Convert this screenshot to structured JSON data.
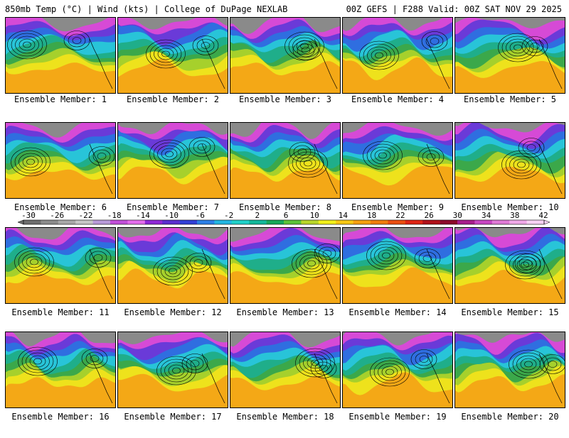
{
  "header": {
    "left": "850mb Temp (°C) | Wind (kts) | College of DuPage NEXLAB",
    "right": "00Z GEFS | F288 Valid: 00Z SAT NOV 29 2025"
  },
  "panels": [
    {
      "label": "Ensemble Member: 1"
    },
    {
      "label": "Ensemble Member: 2"
    },
    {
      "label": "Ensemble Member: 3"
    },
    {
      "label": "Ensemble Member: 4"
    },
    {
      "label": "Ensemble Member: 5"
    },
    {
      "label": "Ensemble Member: 6"
    },
    {
      "label": "Ensemble Member: 7"
    },
    {
      "label": "Ensemble Member: 8"
    },
    {
      "label": "Ensemble Member: 9"
    },
    {
      "label": "Ensemble Member: 10"
    },
    {
      "label": "Ensemble Member: 11"
    },
    {
      "label": "Ensemble Member: 12"
    },
    {
      "label": "Ensemble Member: 13"
    },
    {
      "label": "Ensemble Member: 14"
    },
    {
      "label": "Ensemble Member: 15"
    },
    {
      "label": "Ensemble Member: 16"
    },
    {
      "label": "Ensemble Member: 17"
    },
    {
      "label": "Ensemble Member: 18"
    },
    {
      "label": "Ensemble Member: 19"
    },
    {
      "label": "Ensemble Member: 20"
    }
  ],
  "colorbar": {
    "ticks": [
      "-30",
      "-26",
      "-22",
      "-18",
      "-14",
      "-10",
      "-6",
      "-2",
      "2",
      "6",
      "10",
      "14",
      "18",
      "22",
      "26",
      "30",
      "34",
      "38",
      "42"
    ],
    "colors": [
      "#6e6e6e",
      "#8c8c8c",
      "#a8a8a8",
      "#c6c6c6",
      "#b89ad8",
      "#c24fd8",
      "#e46cec",
      "#8f28d6",
      "#5b2fcf",
      "#3240d6",
      "#2c7fe6",
      "#22b6e2",
      "#1fd1c9",
      "#12b89a",
      "#17a85a",
      "#5cc23a",
      "#b9d62a",
      "#f2f01c",
      "#f7c814",
      "#f5a010",
      "#f07d0c",
      "#ea4e10",
      "#de2515",
      "#b0101a",
      "#8c0a2a",
      "#a81e8c",
      "#c847c2",
      "#e07ad6",
      "#f0a8e8",
      "#f8d2f4"
    ]
  },
  "palette": {
    "cold_grey": "#8a8a8a",
    "magenta": "#d64ad6",
    "purple": "#6a3ad8",
    "blue": "#2f6ee0",
    "cyan": "#28c4d8",
    "teal": "#1fae8a",
    "green": "#3ba84a",
    "lime": "#a6d02c",
    "yellow": "#eee21c",
    "orange": "#f4a816",
    "contour": "#000000"
  }
}
